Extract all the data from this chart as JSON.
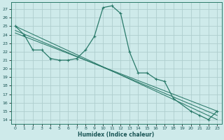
{
  "xlabel": "Humidex (Indice chaleur)",
  "bg_color": "#ceeaea",
  "line_color": "#2a7a6a",
  "grid_color": "#aecece",
  "xlim": [
    -0.5,
    23.5
  ],
  "ylim": [
    13.5,
    27.8
  ],
  "xticks": [
    0,
    1,
    2,
    3,
    4,
    5,
    6,
    7,
    8,
    9,
    10,
    11,
    12,
    13,
    14,
    15,
    16,
    17,
    18,
    19,
    20,
    21,
    22,
    23
  ],
  "yticks": [
    14,
    15,
    16,
    17,
    18,
    19,
    20,
    21,
    22,
    23,
    24,
    25,
    26,
    27
  ],
  "curve_x": [
    0,
    1,
    2,
    3,
    4,
    5,
    6,
    7,
    8,
    9,
    10,
    11,
    12,
    13,
    14,
    15,
    16,
    17,
    18,
    20,
    21,
    22,
    23
  ],
  "curve_y": [
    25.0,
    24.0,
    22.2,
    22.2,
    21.2,
    21.0,
    21.0,
    21.2,
    22.2,
    23.8,
    27.2,
    27.4,
    26.5,
    22.0,
    19.5,
    19.5,
    18.8,
    18.5,
    16.5,
    15.0,
    14.5,
    14.0,
    15.0
  ],
  "line1_x": [
    0,
    23
  ],
  "line1_y": [
    25.0,
    14.0
  ],
  "line2_x": [
    0,
    23
  ],
  "line2_y": [
    24.5,
    14.5
  ],
  "line3_x": [
    0,
    23
  ],
  "line3_y": [
    24.2,
    15.0
  ]
}
